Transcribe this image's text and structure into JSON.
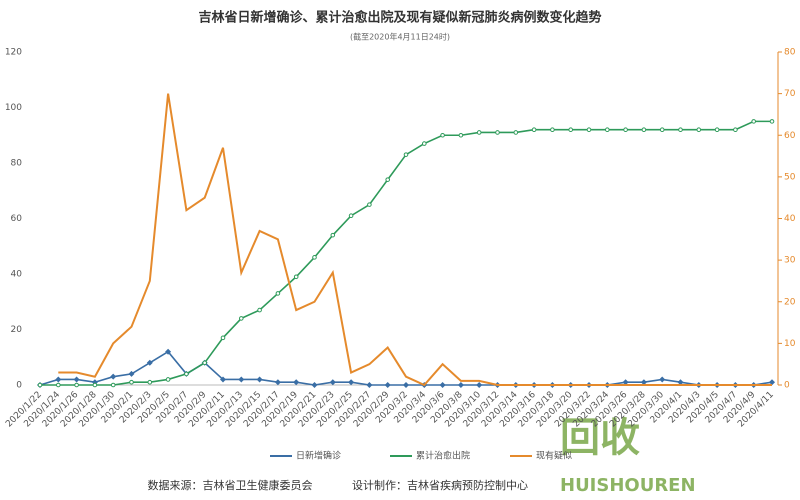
{
  "chart_data": {
    "type": "line",
    "title": "吉林省日新增确诊、累计治愈出院及现有疑似新冠肺炎病例数变化趋势",
    "subtitle": "(截至2020年4月11日24时)",
    "source": "数据来源：吉林省卫生健康委员会",
    "designer": "设计制作：吉林省疾病预防控制中心",
    "watermark": [
      "回收",
      "HUISHOUREN"
    ],
    "categories": [
      "2020/1/22",
      "2020/1/24",
      "2020/1/26",
      "2020/1/28",
      "2020/1/30",
      "2020/2/1",
      "2020/2/3",
      "2020/2/5",
      "2020/2/7",
      "2020/2/9",
      "2020/2/11",
      "2020/2/13",
      "2020/2/15",
      "2020/2/17",
      "2020/2/19",
      "2020/2/21",
      "2020/2/23",
      "2020/2/25",
      "2020/2/27",
      "2020/2/29",
      "2020/3/2",
      "2020/3/4",
      "2020/3/6",
      "2020/3/8",
      "2020/3/10",
      "2020/3/12",
      "2020/3/14",
      "2020/3/16",
      "2020/3/18",
      "2020/3/20",
      "2020/3/22",
      "2020/3/24",
      "2020/3/26",
      "2020/3/28",
      "2020/3/30",
      "2020/4/1",
      "2020/4/3",
      "2020/4/5",
      "2020/4/7",
      "2020/4/9",
      "2020/4/11"
    ],
    "series": [
      {
        "name": "日新增确诊",
        "color": "#3a6ea5",
        "marker": "diamond",
        "values": [
          0,
          2,
          2,
          1,
          3,
          4,
          8,
          12,
          4,
          8,
          2,
          2,
          2,
          1,
          1,
          0,
          1,
          1,
          0,
          0,
          0,
          0,
          0,
          0,
          0,
          0,
          0,
          0,
          0,
          0,
          0,
          0,
          1,
          1,
          2,
          1,
          0,
          0,
          0,
          0,
          1
        ]
      },
      {
        "name": "累计治愈出院",
        "color": "#2e9a5a",
        "marker": "circle",
        "values": [
          0,
          0,
          0,
          0,
          0,
          1,
          1,
          2,
          4,
          8,
          17,
          24,
          27,
          33,
          39,
          46,
          54,
          61,
          65,
          74,
          83,
          87,
          90,
          90,
          91,
          91,
          91,
          92,
          92,
          92,
          92,
          92,
          92,
          92,
          92,
          92,
          92,
          92,
          92,
          95,
          95
        ]
      },
      {
        "name": "现有疑似",
        "color": "#e58a2c",
        "marker": "none",
        "axis": "y2",
        "values": [
          null,
          3,
          3,
          2,
          10,
          14,
          25,
          70,
          42,
          45,
          57,
          27,
          37,
          35,
          18,
          20,
          27,
          3,
          5,
          9,
          2,
          0,
          5,
          1,
          1,
          0,
          0,
          0,
          0,
          0,
          0,
          0,
          0,
          0,
          0,
          0,
          0,
          0,
          0,
          0,
          0
        ]
      }
    ],
    "ylim": [
      0,
      120
    ],
    "yticks": [
      0,
      20,
      40,
      60,
      80,
      100,
      120
    ],
    "y2lim": [
      0,
      80
    ],
    "y2ticks": [
      0,
      10,
      20,
      30,
      40,
      50,
      60,
      70,
      80
    ],
    "grid": false
  }
}
